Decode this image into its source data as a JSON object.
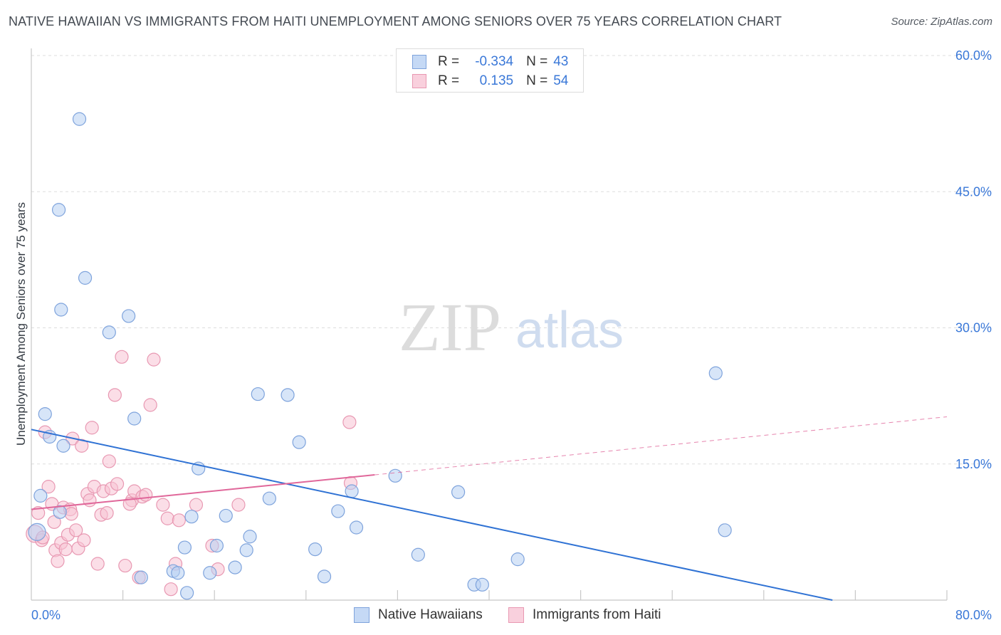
{
  "title": "NATIVE HAWAIIAN VS IMMIGRANTS FROM HAITI UNEMPLOYMENT AMONG SENIORS OVER 75 YEARS CORRELATION CHART",
  "source": "Source: ZipAtlas.com",
  "watermark": {
    "zip": "ZIP",
    "atlas": "atlas"
  },
  "colors": {
    "blue_fill": "#b7cff2",
    "blue_stroke": "#7ea3dc",
    "blue_line": "#2f72d4",
    "pink_fill": "#f7c2d3",
    "pink_stroke": "#e898b2",
    "pink_line": "#e0679a",
    "tick_text": "#3a78d8",
    "grid": "#dddddd"
  },
  "legend": {
    "rows": [
      {
        "r_label": "R =",
        "r_value": "-0.334",
        "n_label": "N =",
        "n_value": "43"
      },
      {
        "r_label": "R =",
        "r_value": "0.135",
        "n_label": "N =",
        "n_value": "54"
      }
    ]
  },
  "bottom_legend": {
    "series1": "Native Hawaiians",
    "series2": "Immigrants from Haiti"
  },
  "chart_data": {
    "type": "scatter",
    "title": "NATIVE HAWAIIAN VS IMMIGRANTS FROM HAITI UNEMPLOYMENT AMONG SENIORS OVER 75 YEARS CORRELATION CHART",
    "xlabel": "",
    "ylabel": "Unemployment Among Seniors over 75 years",
    "xlim": [
      0,
      80
    ],
    "ylim": [
      0,
      60
    ],
    "x_tick_labels": [
      "0.0%",
      "80.0%"
    ],
    "y_ticks": [
      15,
      30,
      45,
      60
    ],
    "y_tick_labels": [
      "15.0%",
      "30.0%",
      "45.0%",
      "60.0%"
    ],
    "grid": true,
    "series": [
      {
        "name": "Native Hawaiians",
        "color": "#b7cff2",
        "trend": {
          "x": [
            0,
            70
          ],
          "y": [
            18.8,
            0.0
          ],
          "style": "solid"
        },
        "points": [
          [
            0.5,
            7.5
          ],
          [
            0.8,
            11.5
          ],
          [
            1.2,
            20.5
          ],
          [
            1.6,
            18.0
          ],
          [
            2.4,
            43.0
          ],
          [
            2.6,
            32.0
          ],
          [
            2.5,
            9.7
          ],
          [
            2.8,
            17.0
          ],
          [
            4.2,
            53.0
          ],
          [
            4.7,
            35.5
          ],
          [
            6.8,
            29.5
          ],
          [
            8.5,
            31.3
          ],
          [
            9.0,
            20.0
          ],
          [
            9.6,
            2.5
          ],
          [
            12.4,
            3.2
          ],
          [
            12.8,
            3.0
          ],
          [
            13.4,
            5.8
          ],
          [
            13.6,
            0.8
          ],
          [
            14.0,
            9.2
          ],
          [
            14.6,
            14.5
          ],
          [
            15.6,
            3.0
          ],
          [
            16.2,
            6.0
          ],
          [
            17.0,
            9.3
          ],
          [
            17.8,
            3.6
          ],
          [
            18.8,
            5.5
          ],
          [
            19.1,
            7.0
          ],
          [
            19.8,
            22.7
          ],
          [
            20.8,
            11.2
          ],
          [
            22.4,
            22.6
          ],
          [
            23.4,
            17.4
          ],
          [
            24.8,
            5.6
          ],
          [
            25.6,
            2.6
          ],
          [
            26.8,
            9.8
          ],
          [
            28.0,
            12.0
          ],
          [
            28.4,
            8.0
          ],
          [
            31.8,
            13.7
          ],
          [
            33.8,
            5.0
          ],
          [
            37.3,
            11.9
          ],
          [
            38.7,
            1.7
          ],
          [
            39.4,
            1.7
          ],
          [
            42.5,
            4.5
          ],
          [
            59.8,
            25.0
          ],
          [
            60.6,
            7.7
          ]
        ],
        "radius": [
          12,
          9,
          9,
          9,
          9,
          9,
          9,
          9,
          9,
          9,
          9,
          9,
          9,
          9,
          9,
          9,
          9,
          9,
          9,
          9,
          9,
          9,
          9,
          9,
          9,
          9,
          9,
          9,
          9,
          9,
          9,
          9,
          9,
          9,
          9,
          9,
          9,
          9,
          9,
          9,
          9,
          9,
          9
        ]
      },
      {
        "name": "Immigrants from Haiti",
        "color": "#f7c2d3",
        "trend": {
          "x": [
            0,
            30
          ],
          "y": [
            10.0,
            13.8
          ],
          "style": "solid",
          "extended": {
            "x": [
              30,
              80
            ],
            "y": [
              13.8,
              20.2
            ],
            "style": "dashed"
          }
        },
        "points": [
          [
            0.3,
            7.3
          ],
          [
            0.6,
            9.6
          ],
          [
            0.9,
            6.6
          ],
          [
            1.2,
            18.5
          ],
          [
            1.5,
            12.5
          ],
          [
            1.8,
            10.6
          ],
          [
            2.1,
            5.5
          ],
          [
            2.3,
            4.3
          ],
          [
            2.6,
            6.3
          ],
          [
            2.8,
            10.2
          ],
          [
            3.0,
            5.6
          ],
          [
            3.2,
            7.2
          ],
          [
            3.4,
            10.0
          ],
          [
            3.6,
            17.8
          ],
          [
            3.9,
            7.7
          ],
          [
            4.1,
            5.7
          ],
          [
            4.4,
            17.0
          ],
          [
            4.6,
            6.6
          ],
          [
            4.9,
            11.7
          ],
          [
            5.1,
            11.0
          ],
          [
            5.3,
            19.0
          ],
          [
            5.5,
            12.5
          ],
          [
            5.8,
            4.0
          ],
          [
            6.1,
            9.4
          ],
          [
            6.3,
            12.0
          ],
          [
            6.6,
            9.6
          ],
          [
            6.8,
            15.3
          ],
          [
            7.0,
            12.3
          ],
          [
            7.3,
            22.6
          ],
          [
            7.5,
            12.8
          ],
          [
            7.9,
            26.8
          ],
          [
            8.2,
            3.8
          ],
          [
            8.8,
            11.0
          ],
          [
            9.0,
            12.0
          ],
          [
            9.4,
            2.5
          ],
          [
            9.7,
            11.4
          ],
          [
            10.0,
            11.6
          ],
          [
            10.4,
            21.5
          ],
          [
            10.7,
            26.5
          ],
          [
            11.5,
            10.5
          ],
          [
            11.9,
            9.0
          ],
          [
            12.2,
            1.2
          ],
          [
            12.6,
            4.0
          ],
          [
            12.9,
            8.8
          ],
          [
            14.4,
            10.5
          ],
          [
            15.8,
            6.0
          ],
          [
            16.3,
            3.4
          ],
          [
            18.1,
            10.5
          ],
          [
            27.8,
            19.6
          ],
          [
            27.9,
            12.9
          ],
          [
            1.0,
            6.9
          ],
          [
            2.0,
            8.6
          ],
          [
            3.5,
            9.5
          ],
          [
            8.6,
            10.6
          ]
        ],
        "radius": [
          12,
          9,
          9,
          9,
          9,
          9,
          9,
          9,
          9,
          9,
          9,
          9,
          9,
          9,
          9,
          9,
          9,
          9,
          9,
          9,
          9,
          9,
          9,
          9,
          9,
          9,
          9,
          9,
          9,
          9,
          9,
          9,
          9,
          9,
          9,
          9,
          9,
          9,
          9,
          9,
          9,
          9,
          9,
          9,
          9,
          9,
          9,
          9,
          9,
          9,
          9,
          9,
          9,
          9
        ]
      }
    ]
  }
}
